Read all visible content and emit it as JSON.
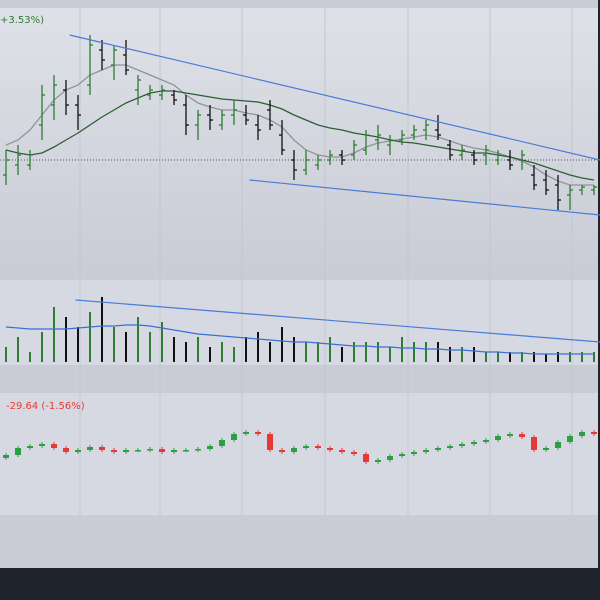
{
  "chart_data": [
    {
      "type": "ohlc",
      "annotation": "+3.53%)",
      "annotation_color": "#2e7d32",
      "up_color": "#2e7d32",
      "down_color": "#111111",
      "ylim": [
        0,
        265
      ],
      "reference_value": 115,
      "open": [
        100,
        110,
        110,
        150,
        170,
        185,
        170,
        190,
        225,
        210,
        220,
        185,
        180,
        180,
        180,
        170,
        150,
        160,
        150,
        160,
        160,
        150,
        165,
        140,
        115,
        105,
        110,
        115,
        120,
        120,
        125,
        135,
        130,
        135,
        140,
        145,
        145,
        130,
        120,
        120,
        120,
        115,
        115,
        115,
        100,
        95,
        90,
        80,
        85,
        85
      ],
      "high": [
        125,
        130,
        125,
        190,
        200,
        195,
        180,
        240,
        235,
        230,
        235,
        200,
        190,
        190,
        185,
        180,
        165,
        170,
        165,
        175,
        170,
        160,
        175,
        155,
        125,
        125,
        120,
        125,
        125,
        135,
        145,
        150,
        140,
        145,
        150,
        155,
        160,
        135,
        130,
        125,
        130,
        125,
        125,
        125,
        110,
        105,
        100,
        90,
        90,
        90
      ],
      "low": [
        90,
        100,
        105,
        135,
        155,
        160,
        145,
        180,
        205,
        195,
        200,
        170,
        175,
        175,
        170,
        140,
        135,
        145,
        145,
        150,
        150,
        135,
        145,
        120,
        95,
        100,
        105,
        110,
        110,
        115,
        120,
        125,
        120,
        130,
        135,
        135,
        135,
        115,
        115,
        110,
        110,
        110,
        105,
        105,
        85,
        80,
        65,
        65,
        80,
        80
      ],
      "close": [
        115,
        120,
        120,
        180,
        190,
        170,
        160,
        230,
        215,
        225,
        205,
        195,
        185,
        185,
        175,
        150,
        160,
        155,
        160,
        165,
        155,
        145,
        150,
        125,
        105,
        115,
        115,
        120,
        115,
        130,
        140,
        140,
        135,
        140,
        145,
        150,
        140,
        120,
        125,
        115,
        125,
        120,
        110,
        120,
        90,
        85,
        75,
        85,
        88,
        88
      ],
      "moving_averages": [
        {
          "color": "#8e9499",
          "values": [
            130,
            135,
            145,
            160,
            175,
            185,
            190,
            200,
            205,
            210,
            210,
            205,
            200,
            195,
            190,
            180,
            172,
            168,
            165,
            165,
            162,
            160,
            155,
            148,
            135,
            125,
            120,
            118,
            118,
            122,
            128,
            132,
            134,
            136,
            138,
            140,
            138,
            134,
            130,
            127,
            125,
            122,
            118,
            114,
            108,
            100,
            94,
            90,
            90,
            90
          ]
        },
        {
          "color": "#2f5d34",
          "values": [
            125,
            122,
            120,
            122,
            128,
            135,
            142,
            150,
            158,
            165,
            172,
            177,
            182,
            184,
            184,
            182,
            180,
            178,
            176,
            175,
            174,
            173,
            170,
            166,
            160,
            155,
            150,
            147,
            145,
            142,
            140,
            138,
            135,
            133,
            132,
            130,
            128,
            126,
            124,
            122,
            122,
            120,
            118,
            115,
            112,
            108,
            104,
            100,
            97,
            95
          ]
        }
      ],
      "trendlines": [
        {
          "color": "#4a7bd8",
          "points": [
            [
              5.3,
              240
            ],
            [
              49.5,
              115
            ]
          ]
        },
        {
          "color": "#4a7bd8",
          "points": [
            [
              20.3,
              95
            ],
            [
              49.5,
              60
            ]
          ]
        }
      ]
    },
    {
      "type": "bar",
      "ylim": [
        0,
        80
      ],
      "values": [
        15,
        25,
        10,
        30,
        55,
        45,
        35,
        50,
        65,
        35,
        30,
        45,
        30,
        40,
        25,
        20,
        25,
        15,
        20,
        15,
        25,
        30,
        20,
        35,
        25,
        20,
        20,
        25,
        15,
        20,
        20,
        20,
        15,
        25,
        20,
        20,
        20,
        15,
        15,
        15,
        10,
        10,
        10,
        10,
        10,
        8,
        10,
        10,
        10,
        10
      ],
      "moving_average": {
        "color": "#3b6fd6",
        "values": [
          35,
          34,
          33,
          33,
          33,
          33,
          34,
          35,
          36,
          36,
          37,
          37,
          36,
          34,
          32,
          30,
          28,
          27,
          26,
          25,
          24,
          23,
          22,
          21,
          20,
          20,
          19,
          18,
          17,
          16,
          16,
          15,
          15,
          14,
          14,
          13,
          13,
          12,
          12,
          11,
          10,
          10,
          9,
          9,
          8,
          8,
          8,
          8,
          8,
          8
        ]
      },
      "trendlines": [
        {
          "color": "#4a7bd8",
          "points": [
            [
              5.8,
              62
            ],
            [
              49.5,
              20
            ]
          ]
        }
      ]
    },
    {
      "type": "candlestick",
      "annotation": "-29.64 (-1.56%)",
      "annotation_color": "#e53935",
      "up_color": "#2ea043",
      "down_color": "#e53935",
      "ylim": [
        0,
        120
      ],
      "open": [
        57,
        60,
        67,
        69,
        71,
        67,
        63,
        65,
        68,
        65,
        63,
        65,
        65,
        66,
        63,
        65,
        65,
        66,
        69,
        75,
        81,
        83,
        81,
        65,
        63,
        67,
        69,
        67,
        65,
        63,
        61,
        53,
        55,
        59,
        61,
        63,
        65,
        67,
        69,
        71,
        73,
        75,
        79,
        81,
        78,
        65,
        67,
        73,
        79,
        83
      ],
      "close": [
        60,
        67,
        69,
        71,
        67,
        63,
        65,
        68,
        65,
        63,
        65,
        65,
        66,
        63,
        65,
        65,
        66,
        69,
        75,
        81,
        83,
        81,
        65,
        63,
        67,
        69,
        67,
        65,
        63,
        61,
        53,
        55,
        59,
        61,
        63,
        65,
        67,
        69,
        71,
        73,
        75,
        79,
        81,
        78,
        65,
        67,
        73,
        79,
        83,
        81
      ]
    }
  ]
}
